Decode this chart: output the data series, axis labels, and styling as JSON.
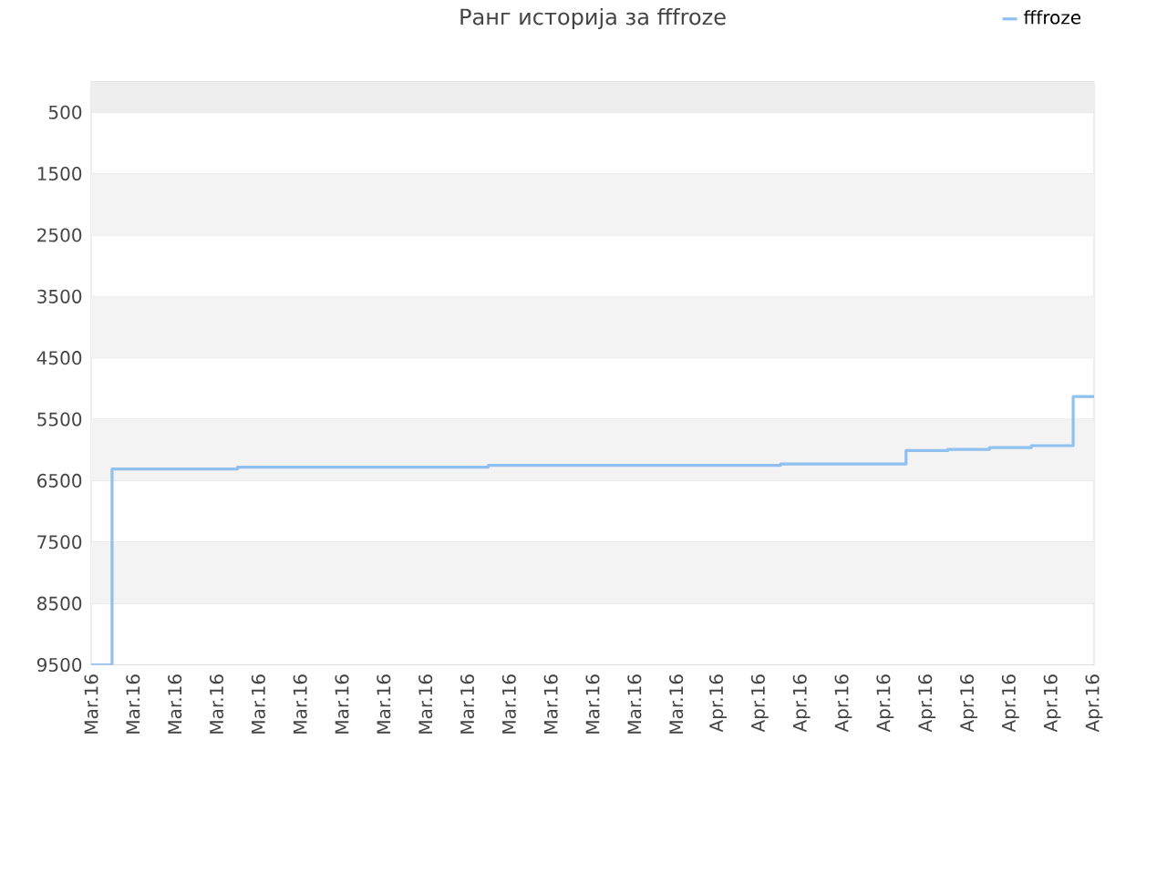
{
  "chart_data": {
    "type": "step",
    "title": "Ранг историја за fffroze",
    "legend": "top right",
    "grid": "y",
    "categories": [
      "Mar.16",
      "Mar.16",
      "Mar.16",
      "Mar.16",
      "Mar.16",
      "Mar.16",
      "Mar.16",
      "Mar.16",
      "Mar.16",
      "Mar.16",
      "Mar.16",
      "Mar.16",
      "Mar.16",
      "Mar.16",
      "Mar.16",
      "Apr.16",
      "Apr.16",
      "Apr.16",
      "Apr.16",
      "Apr.16",
      "Apr.16",
      "Apr.16",
      "Apr.16",
      "Apr.16",
      "Apr.16"
    ],
    "ylim": [
      9500,
      0
    ],
    "yticks": [
      500,
      1500,
      2500,
      3500,
      4500,
      5500,
      6500,
      7500,
      8500,
      9500
    ],
    "bands": [
      {
        "axis": "y",
        "from": 0,
        "to": 500,
        "color": "#eeeeee"
      },
      {
        "axis": "y",
        "from": 1500,
        "to": 2500,
        "color": "#f3f3f3"
      },
      {
        "axis": "y",
        "from": 3500,
        "to": 4500,
        "color": "#f3f3f3"
      },
      {
        "axis": "y",
        "from": 5500,
        "to": 6500,
        "color": "#f3f3f3"
      },
      {
        "axis": "y",
        "from": 7500,
        "to": 8500,
        "color": "#f3f3f3"
      }
    ],
    "series": [
      {
        "name": "fffroze",
        "color": "#90c0f0",
        "values": [
          9500,
          6310,
          6310,
          6310,
          6280,
          6280,
          6280,
          6280,
          6280,
          6280,
          6250,
          6250,
          6250,
          6250,
          6250,
          6250,
          6250,
          6230,
          6230,
          6230,
          6010,
          5990,
          5960,
          5930,
          5130
        ]
      }
    ]
  }
}
